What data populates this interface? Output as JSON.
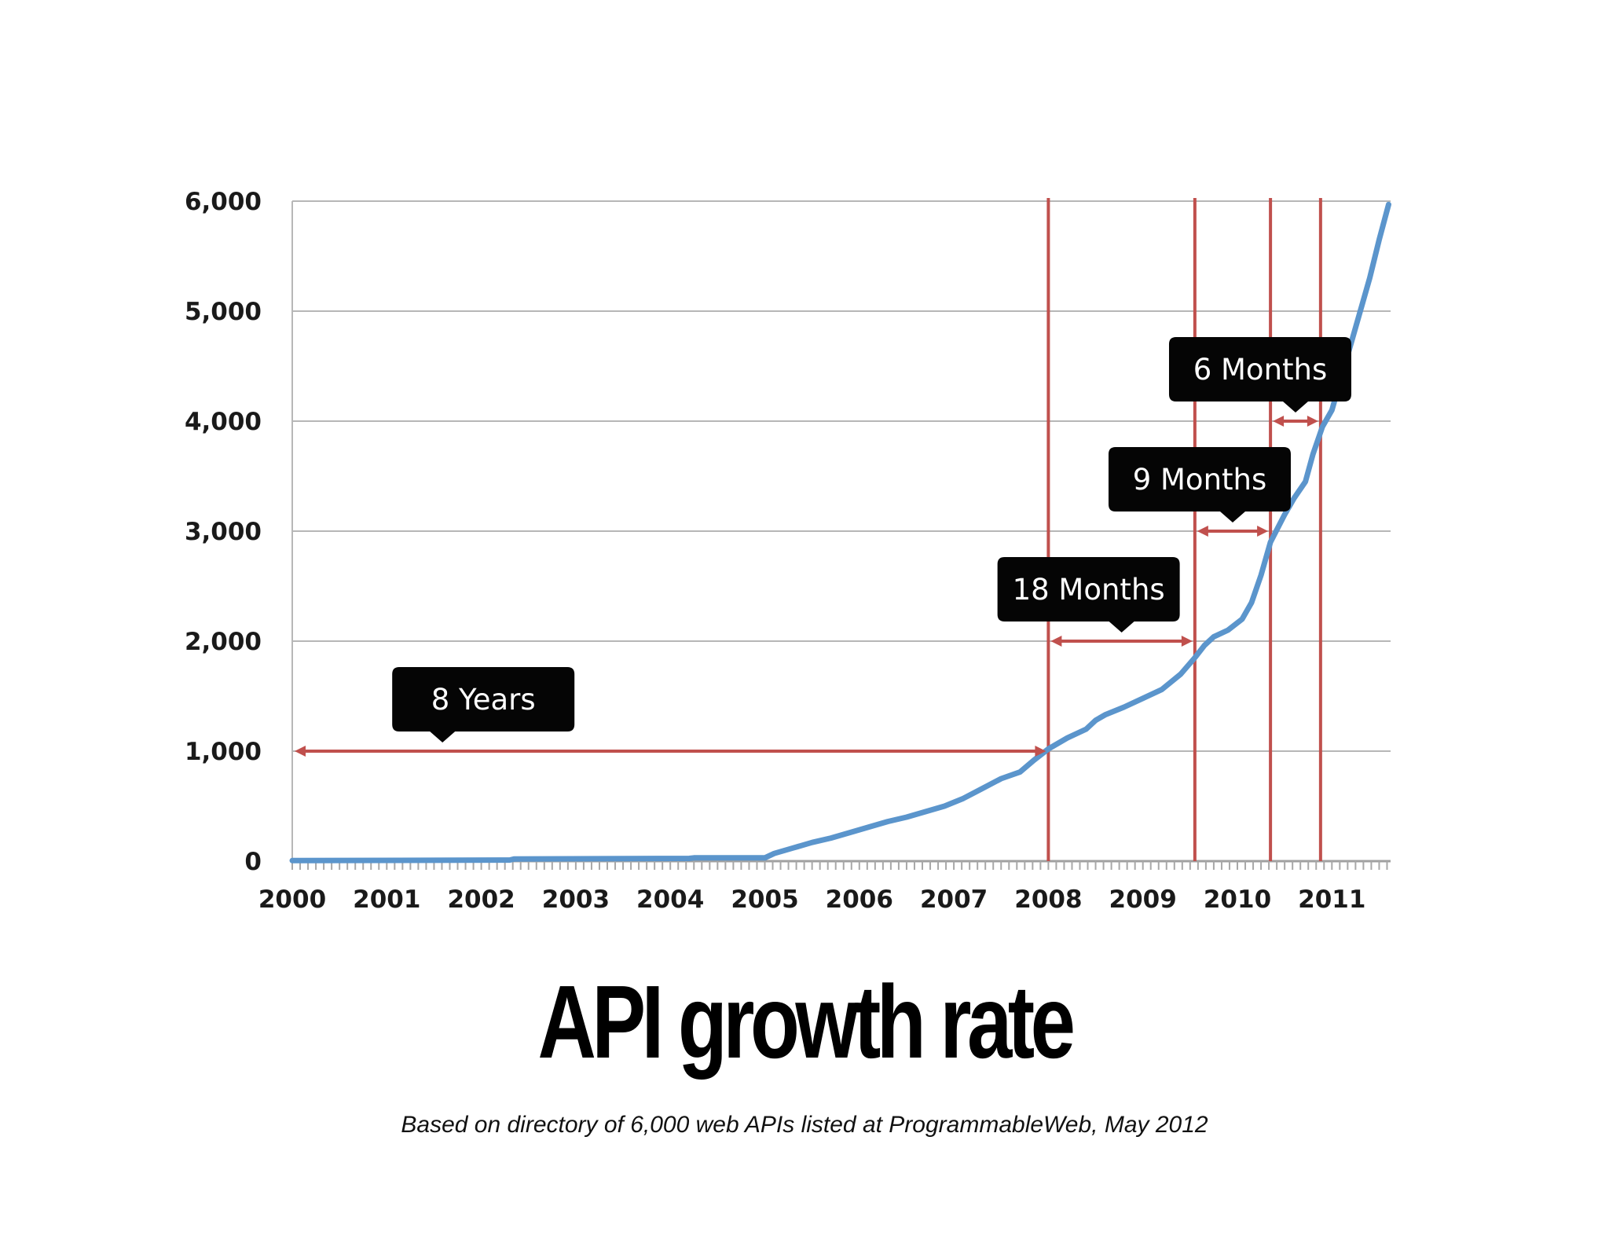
{
  "chart_data": {
    "type": "line",
    "title": "API growth rate",
    "subtitle": "Based on directory of 6,000 web APIs listed at ProgrammableWeb, May 2012",
    "xlabel": "",
    "ylabel": "",
    "xlim": [
      2000,
      2011.65
    ],
    "ylim": [
      0,
      6000
    ],
    "x_ticks": [
      "2000",
      "2001",
      "2002",
      "2003",
      "2004",
      "2005",
      "2006",
      "2007",
      "2008",
      "2009",
      "2010",
      "2011"
    ],
    "y_ticks": [
      "0",
      "1,000",
      "2,000",
      "3,000",
      "4,000",
      "5,000",
      "6,000"
    ],
    "grid": true,
    "series": [
      {
        "color": "#5b95cc",
        "x": [
          2000,
          2002.3,
          2002.35,
          2004.2,
          2004.25,
          2005.0,
          2005.1,
          2005.3,
          2005.5,
          2005.7,
          2005.9,
          2006.1,
          2006.3,
          2006.5,
          2006.7,
          2006.9,
          2007.1,
          2007.3,
          2007.5,
          2007.7,
          2007.85,
          2008.0,
          2008.2,
          2008.4,
          2008.5,
          2008.6,
          2008.8,
          2009.0,
          2009.2,
          2009.4,
          2009.55,
          2009.65,
          2009.75,
          2009.9,
          2010.05,
          2010.15,
          2010.25,
          2010.35,
          2010.5,
          2010.6,
          2010.72,
          2010.8,
          2010.9,
          2011.0,
          2011.1,
          2011.2,
          2011.3,
          2011.4,
          2011.5,
          2011.6
        ],
        "y": [
          5,
          10,
          20,
          25,
          30,
          30,
          70,
          120,
          170,
          210,
          260,
          310,
          360,
          400,
          450,
          500,
          570,
          660,
          750,
          810,
          920,
          1020,
          1120,
          1200,
          1280,
          1330,
          1400,
          1480,
          1560,
          1700,
          1850,
          1960,
          2040,
          2100,
          2200,
          2350,
          2600,
          2900,
          3150,
          3300,
          3450,
          3700,
          3950,
          4100,
          4400,
          4700,
          5000,
          5300,
          5650,
          5970
        ]
      }
    ],
    "markers": [
      2008.0,
      2009.55,
      2010.35,
      2010.88
    ],
    "marker_color": "#c0504d",
    "annotations": [
      {
        "label": "8 Years",
        "from": 2000.0,
        "to": 2008.0,
        "y": 1000
      },
      {
        "label": "18 Months",
        "from": 2008.0,
        "to": 2009.55,
        "y": 2000
      },
      {
        "label": "9 Months",
        "from": 2009.55,
        "to": 2010.35,
        "y": 3000
      },
      {
        "label": "6 Months",
        "from": 2010.35,
        "to": 2010.88,
        "y": 4000
      }
    ]
  }
}
